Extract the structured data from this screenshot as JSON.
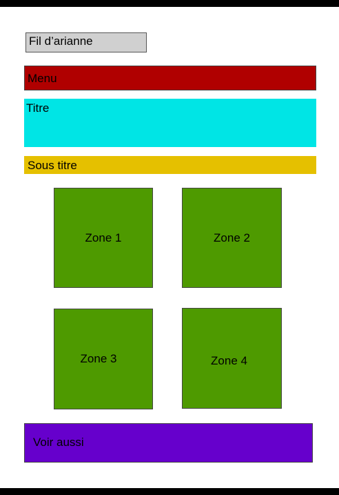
{
  "breadcrumb": {
    "label": "Fil d’arianne",
    "color": "#d0d0d0"
  },
  "menu": {
    "label": "Menu",
    "color": "#b00000"
  },
  "title": {
    "label": "Titre",
    "color": "#00e5e5"
  },
  "subtitle": {
    "label": "Sous titre",
    "color": "#e5c000"
  },
  "zones": [
    {
      "label": "Zone 1",
      "color": "#4e9a00"
    },
    {
      "label": "Zone 2",
      "color": "#4e9a00"
    },
    {
      "label": "Zone 3",
      "color": "#4e9a00"
    },
    {
      "label": "Zone 4",
      "color": "#4e9a00"
    }
  ],
  "see_also": {
    "label": "Voir aussi",
    "color": "#6600cc"
  }
}
